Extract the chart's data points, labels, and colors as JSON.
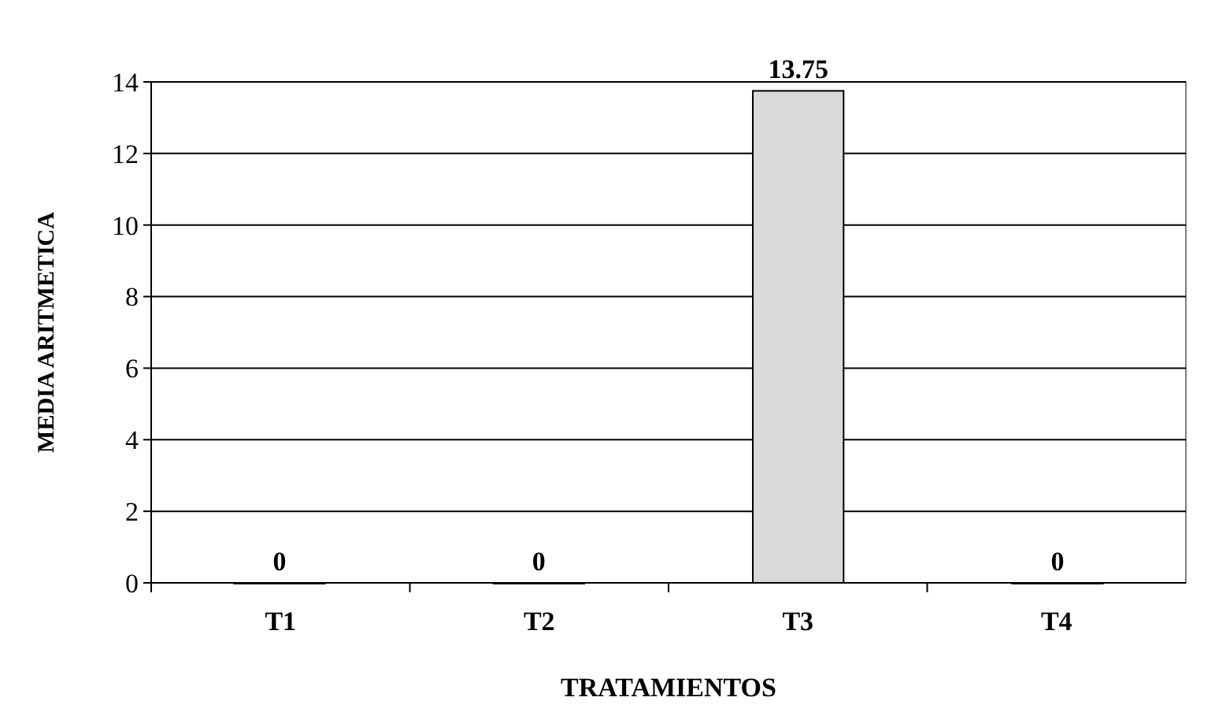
{
  "chart_data": {
    "type": "bar",
    "xlabel": "TRATAMIENTOS",
    "ylabel": "MEDIA ARITMETICA",
    "categories": [
      "T1",
      "T2",
      "T3",
      "T4"
    ],
    "values": [
      0,
      0,
      13.75,
      0
    ],
    "color": "#d9d9d9",
    "ylim": [
      0,
      14
    ],
    "yticks": [
      0,
      2,
      4,
      6,
      8,
      10,
      12,
      14
    ],
    "grid": "y",
    "data_labels": true
  }
}
